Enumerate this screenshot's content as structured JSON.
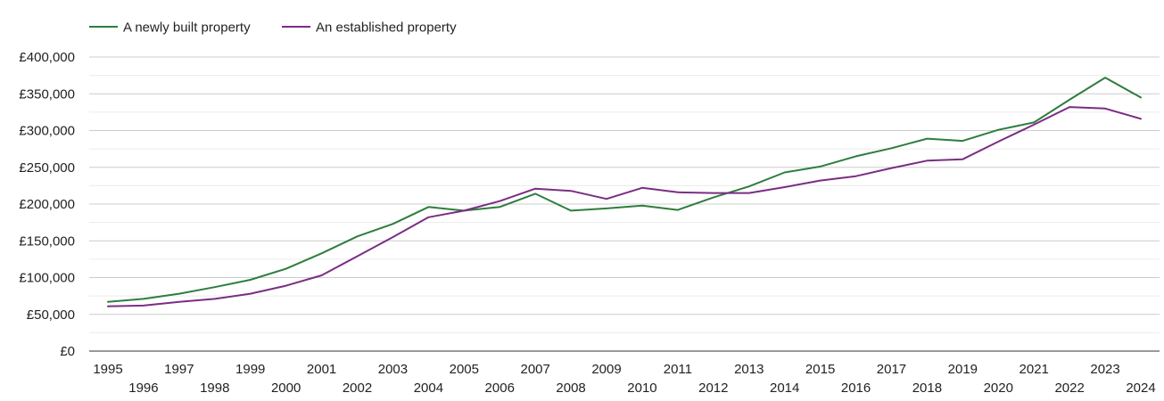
{
  "chart_data": {
    "type": "line",
    "title": "",
    "xlabel": "",
    "ylabel": "",
    "x": [
      1995,
      1996,
      1997,
      1998,
      1999,
      2000,
      2001,
      2002,
      2003,
      2004,
      2005,
      2006,
      2007,
      2008,
      2009,
      2010,
      2011,
      2012,
      2013,
      2014,
      2015,
      2016,
      2017,
      2018,
      2019,
      2020,
      2021,
      2022,
      2023,
      2024
    ],
    "x_tick_labels": [
      "1995",
      "1996",
      "1997",
      "1998",
      "1999",
      "2000",
      "2001",
      "2002",
      "2003",
      "2004",
      "2005",
      "2006",
      "2007",
      "2008",
      "2009",
      "2010",
      "2011",
      "2012",
      "2013",
      "2014",
      "2015",
      "2016",
      "2017",
      "2018",
      "2019",
      "2020",
      "2021",
      "2022",
      "2023",
      "2024"
    ],
    "ylim": [
      0,
      400000
    ],
    "y_ticks": [
      0,
      50000,
      100000,
      150000,
      200000,
      250000,
      300000,
      350000,
      400000
    ],
    "y_tick_labels": [
      "£0",
      "£50,000",
      "£100,000",
      "£150,000",
      "£200,000",
      "£250,000",
      "£300,000",
      "£350,000",
      "£400,000"
    ],
    "grid": true,
    "legend_position": "top-left",
    "series": [
      {
        "name": "A newly built property",
        "color": "#2e7d3e",
        "values": [
          67000,
          71000,
          78000,
          87000,
          97000,
          112000,
          133000,
          156000,
          173000,
          196000,
          191000,
          196000,
          214000,
          191000,
          194000,
          198000,
          192000,
          209000,
          224000,
          243000,
          251000,
          265000,
          276000,
          289000,
          286000,
          301000,
          311000,
          342000,
          372000,
          345000
        ]
      },
      {
        "name": "An established property",
        "color": "#7b2d84",
        "values": [
          61000,
          62000,
          67000,
          71000,
          78000,
          89000,
          103000,
          129000,
          155000,
          182000,
          191000,
          204000,
          221000,
          218000,
          207000,
          222000,
          216000,
          215000,
          215000,
          223000,
          232000,
          238000,
          249000,
          259000,
          261000,
          285000,
          308000,
          332000,
          330000,
          316000
        ]
      }
    ]
  }
}
